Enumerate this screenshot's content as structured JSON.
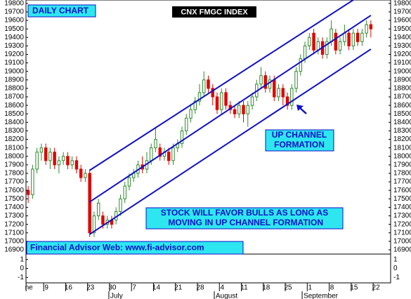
{
  "chart_data": {
    "type": "candlestick",
    "title": "CNX FMGC INDEX",
    "annotations": [
      {
        "lines": [
          "DAILY CHART"
        ]
      },
      {
        "lines": [
          "UP CHANNEL",
          "FORMATION"
        ]
      },
      {
        "lines": [
          "STOCK WILL FAVOR BULLS AS LONG AS",
          " MOVING IN UP CHANNEL FORMATION"
        ]
      },
      {
        "lines": [
          "Financial Advisor Web: www.fi-advisor.com"
        ]
      }
    ],
    "x": [
      0,
      1,
      2,
      3,
      4,
      5,
      6,
      7,
      8,
      9,
      10,
      11,
      12,
      13,
      14,
      15,
      16,
      17,
      18,
      19,
      20,
      21,
      22,
      23,
      24,
      25,
      26,
      27,
      28,
      29,
      30,
      31,
      32,
      33,
      34,
      35,
      36,
      37,
      38,
      39,
      40,
      41,
      42,
      43,
      44,
      45,
      46,
      47,
      48,
      49,
      50,
      51,
      52,
      53,
      54,
      55,
      56,
      57,
      58,
      59,
      60,
      61,
      62,
      63,
      64,
      65,
      66,
      67,
      68,
      69,
      70,
      71,
      72,
      73,
      74,
      75,
      76,
      77,
      78
    ],
    "open": [
      17600,
      17550,
      17850,
      18050,
      18100,
      17950,
      18050,
      17900,
      17950,
      18000,
      17900,
      17950,
      17850,
      17750,
      17800,
      17100,
      17300,
      17300,
      17200,
      17250,
      17250,
      17350,
      17500,
      17650,
      17750,
      17800,
      17900,
      17850,
      17950,
      18100,
      18100,
      18000,
      18050,
      17950,
      18100,
      18150,
      18300,
      18450,
      18550,
      18650,
      18750,
      18900,
      18800,
      18700,
      18550,
      18750,
      18600,
      18550,
      18500,
      18600,
      18500,
      18600,
      18700,
      18850,
      18950,
      18800,
      18900,
      18700,
      18800,
      18700,
      18600,
      18800,
      19000,
      19150,
      19300,
      19450,
      19250,
      19350,
      19200,
      19350,
      19450,
      19250,
      19350,
      19450,
      19300,
      19450,
      19350,
      19450,
      19550
    ],
    "high": [
      17650,
      17900,
      18100,
      18150,
      18150,
      18100,
      18100,
      18000,
      18050,
      18050,
      18000,
      18000,
      17900,
      17850,
      17850,
      17350,
      17500,
      17350,
      17300,
      17300,
      17400,
      17550,
      17700,
      17800,
      17850,
      17950,
      18000,
      18050,
      18150,
      18350,
      18150,
      18100,
      18100,
      18150,
      18200,
      18350,
      18500,
      18600,
      18700,
      18850,
      19000,
      18950,
      18850,
      18750,
      18800,
      18800,
      18650,
      18600,
      18650,
      18650,
      18650,
      18750,
      18900,
      19050,
      19000,
      18950,
      18950,
      18850,
      18850,
      18750,
      18850,
      19050,
      19200,
      19350,
      19450,
      19500,
      19400,
      19400,
      19400,
      19600,
      19500,
      19400,
      19550,
      19500,
      19500,
      19500,
      19500,
      19600,
      19600
    ],
    "low": [
      17450,
      17500,
      17800,
      17950,
      17900,
      17850,
      17850,
      17800,
      17900,
      17850,
      17850,
      17800,
      17700,
      17700,
      17050,
      17050,
      17250,
      17150,
      17150,
      17150,
      17200,
      17300,
      17450,
      17600,
      17700,
      17750,
      17800,
      17800,
      17900,
      18050,
      17950,
      17950,
      17900,
      17900,
      18050,
      18100,
      18250,
      18400,
      18500,
      18600,
      18700,
      18750,
      18600,
      18500,
      18500,
      18550,
      18500,
      18450,
      18450,
      18400,
      18350,
      18550,
      18650,
      18800,
      18750,
      18750,
      18650,
      18650,
      18600,
      18550,
      18550,
      18750,
      18950,
      19100,
      19250,
      19200,
      19200,
      19150,
      19150,
      19300,
      19200,
      19200,
      19300,
      19250,
      19250,
      19300,
      19300,
      19400,
      19400
    ],
    "close": [
      17550,
      17850,
      18050,
      18100,
      17950,
      18050,
      17900,
      17950,
      18000,
      17900,
      17950,
      17850,
      17750,
      17800,
      17100,
      17300,
      17450,
      17200,
      17250,
      17200,
      17350,
      17500,
      17650,
      17750,
      17800,
      17900,
      17850,
      17950,
      18100,
      18200,
      18000,
      18050,
      17950,
      18100,
      18150,
      18300,
      18450,
      18550,
      18650,
      18750,
      18900,
      18800,
      18700,
      18550,
      18750,
      18600,
      18550,
      18500,
      18600,
      18500,
      18600,
      18700,
      18850,
      18950,
      18800,
      18900,
      18700,
      18800,
      18700,
      18600,
      18800,
      19000,
      19150,
      19300,
      19400,
      19250,
      19350,
      19200,
      19350,
      19500,
      19250,
      19350,
      19450,
      19300,
      19450,
      19350,
      19450,
      19550,
      19500
    ],
    "up_color": "#2e8b2e",
    "down_color": "#e00000",
    "channel_color": "#1010c8",
    "channel_lines": [
      {
        "x": [
          14,
          78
        ],
        "y": [
          17836,
          19974
        ]
      },
      {
        "x": [
          14,
          78
        ],
        "y": [
          17464,
          19659
        ]
      },
      {
        "x": [
          14,
          78
        ],
        "y": [
          17083,
          19261
        ]
      }
    ],
    "xlim": [
      -0.5,
      82.5
    ],
    "xticks": [
      {
        "value": 0,
        "label": "ne"
      },
      {
        "value": 4,
        "label": "9"
      },
      {
        "value": 9,
        "label": "16"
      },
      {
        "value": 14,
        "label": "23"
      },
      {
        "value": 19,
        "label": "30"
      },
      {
        "value": 24,
        "label": "7"
      },
      {
        "value": 29,
        "label": "14"
      },
      {
        "value": 34,
        "label": "21"
      },
      {
        "value": 39,
        "label": "28"
      },
      {
        "value": 44,
        "label": "4"
      },
      {
        "value": 49,
        "label": "11"
      },
      {
        "value": 54,
        "label": "18"
      },
      {
        "value": 59,
        "label": "25"
      },
      {
        "value": 64,
        "label": "1"
      },
      {
        "value": 69,
        "label": "8"
      },
      {
        "value": 74,
        "label": "15"
      },
      {
        "value": 79,
        "label": "22"
      }
    ],
    "month_labels": [
      {
        "value": 19,
        "label": "July"
      },
      {
        "value": 43,
        "label": "August"
      },
      {
        "value": 63,
        "label": "September"
      }
    ],
    "ylim": [
      16850,
      19840
    ],
    "yticks": [
      19800,
      19700,
      19600,
      19500,
      19400,
      19300,
      19200,
      19100,
      19000,
      18900,
      18800,
      18700,
      18600,
      18500,
      18400,
      18300,
      18200,
      18100,
      18000,
      17900,
      17800,
      17700,
      17600,
      17500,
      17400,
      17300,
      17200,
      17100,
      17000,
      16900
    ],
    "y2lim": [
      -1.6,
      1.6
    ],
    "y2ticks": [
      1,
      0,
      -1
    ]
  }
}
